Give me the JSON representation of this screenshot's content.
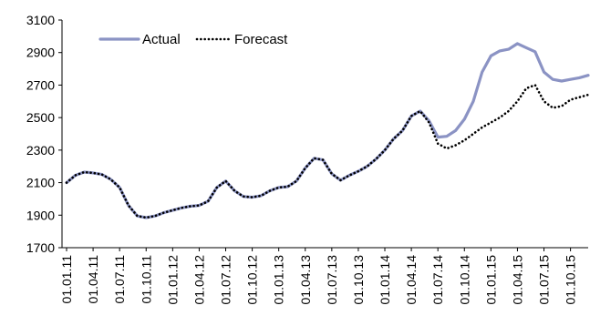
{
  "chart_data": {
    "type": "line",
    "title": "",
    "xlabel": "",
    "ylabel": "",
    "ylim": [
      1700,
      3100
    ],
    "yticks": [
      1700,
      1900,
      2100,
      2300,
      2500,
      2700,
      2900,
      3100
    ],
    "x_tick_labels": [
      "01.01.11",
      "01.04.11",
      "01.07.11",
      "01.10.11",
      "01.01.12",
      "01.04.12",
      "01.07.12",
      "01.10.12",
      "01.01.13",
      "01.04.13",
      "01.07.13",
      "01.10.13",
      "01.01.14",
      "01.04.14",
      "01.07.14",
      "01.10.14",
      "01.01.15",
      "01.04.15",
      "01.07.15",
      "01.10.15"
    ],
    "x": [
      "2011-01",
      "2011-02",
      "2011-03",
      "2011-04",
      "2011-05",
      "2011-06",
      "2011-07",
      "2011-08",
      "2011-09",
      "2011-10",
      "2011-11",
      "2011-12",
      "2012-01",
      "2012-02",
      "2012-03",
      "2012-04",
      "2012-05",
      "2012-06",
      "2012-07",
      "2012-08",
      "2012-09",
      "2012-10",
      "2012-11",
      "2012-12",
      "2013-01",
      "2013-02",
      "2013-03",
      "2013-04",
      "2013-05",
      "2013-06",
      "2013-07",
      "2013-08",
      "2013-09",
      "2013-10",
      "2013-11",
      "2013-12",
      "2014-01",
      "2014-02",
      "2014-03",
      "2014-04",
      "2014-05",
      "2014-06",
      "2014-07",
      "2014-08",
      "2014-09",
      "2014-10",
      "2014-11",
      "2014-12",
      "2015-01",
      "2015-02",
      "2015-03",
      "2015-04",
      "2015-05",
      "2015-06",
      "2015-07",
      "2015-08",
      "2015-09",
      "2015-10",
      "2015-11",
      "2015-12"
    ],
    "series": [
      {
        "name": "Actual",
        "color": "#8B93C4",
        "style": "solid",
        "values": [
          2100,
          2145,
          2165,
          2160,
          2150,
          2120,
          2070,
          1960,
          1895,
          1885,
          1895,
          1915,
          1930,
          1945,
          1955,
          1960,
          1985,
          2070,
          2110,
          2050,
          2015,
          2010,
          2020,
          2050,
          2070,
          2075,
          2110,
          2190,
          2250,
          2240,
          2155,
          2115,
          2145,
          2170,
          2200,
          2245,
          2300,
          2370,
          2420,
          2510,
          2540,
          2480,
          2380,
          2385,
          2420,
          2490,
          2600,
          2780,
          2880,
          2910,
          2920,
          2955,
          2930,
          2905,
          2780,
          2735,
          2725,
          2735,
          2745,
          2760
        ]
      },
      {
        "name": "Forecast",
        "color": "#000000",
        "style": "dotted",
        "values": [
          2100,
          2145,
          2165,
          2160,
          2150,
          2120,
          2070,
          1960,
          1895,
          1885,
          1895,
          1915,
          1930,
          1945,
          1955,
          1960,
          1985,
          2070,
          2110,
          2050,
          2015,
          2010,
          2020,
          2050,
          2070,
          2075,
          2110,
          2190,
          2250,
          2240,
          2155,
          2115,
          2145,
          2170,
          2200,
          2245,
          2300,
          2370,
          2420,
          2510,
          2540,
          2470,
          2340,
          2310,
          2330,
          2360,
          2400,
          2440,
          2470,
          2500,
          2540,
          2600,
          2680,
          2700,
          2600,
          2560,
          2570,
          2610,
          2625,
          2640
        ]
      }
    ],
    "legend": "top-left",
    "grid": false
  }
}
